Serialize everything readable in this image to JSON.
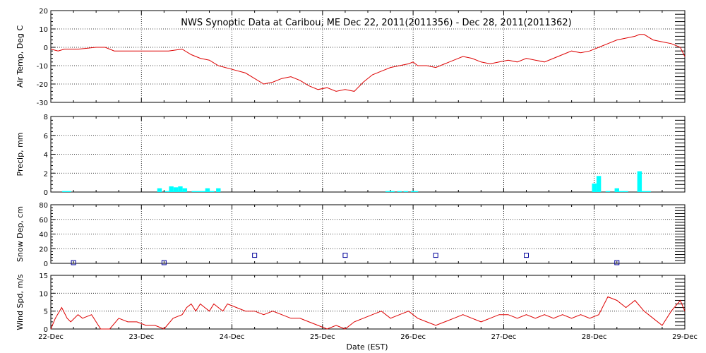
{
  "title": "NWS Synoptic Data at Caribou, ME    Dec 22, 2011(2011356) - Dec 28, 2011(2011362)",
  "xlabel": "Date (EST)",
  "x_ticks": [
    "22-Dec",
    "23-Dec",
    "24-Dec",
    "25-Dec",
    "26-Dec",
    "27-Dec",
    "28-Dec",
    "29-Dec"
  ],
  "colors": {
    "temp": "#dd0000",
    "precip": "#00ffff",
    "snow": "#000099",
    "wind": "#dd0000",
    "grid": "#000000"
  },
  "chart_data": [
    {
      "type": "line",
      "ylabel": "Air Temp, Deg C",
      "ylim": [
        -30,
        20
      ],
      "yticks": [
        -30,
        -20,
        -10,
        0,
        10,
        20
      ],
      "grid": true,
      "x_unit": "days since 22-Dec 00:00",
      "series": [
        {
          "x": [
            0,
            0.08,
            0.15,
            0.3,
            0.5,
            0.6,
            0.7,
            0.9,
            1.1,
            1.3,
            1.45,
            1.55,
            1.65,
            1.75,
            1.85,
            2.0,
            2.15,
            2.25,
            2.35,
            2.45,
            2.55,
            2.65,
            2.75,
            2.85,
            2.95,
            3.05,
            3.15,
            3.25,
            3.35,
            3.45,
            3.55,
            3.65,
            3.75,
            3.85,
            3.95,
            4.0,
            4.05,
            4.15,
            4.25,
            4.35,
            4.45,
            4.55,
            4.65,
            4.75,
            4.85,
            4.95,
            5.05,
            5.15,
            5.25,
            5.35,
            5.45,
            5.55,
            5.65,
            5.75,
            5.85,
            5.95,
            6.05,
            6.15,
            6.25,
            6.35,
            6.45,
            6.5,
            6.55,
            6.65,
            6.75,
            6.85,
            6.95,
            7.0
          ],
          "y": [
            -1,
            -2,
            -1,
            -1,
            0,
            0,
            -2,
            -2,
            -2,
            -2,
            -1,
            -4,
            -6,
            -7,
            -10,
            -12,
            -14,
            -17,
            -20,
            -19,
            -17,
            -16,
            -18,
            -21,
            -23,
            -22,
            -24,
            -23,
            -24,
            -19,
            -15,
            -13,
            -11,
            -10,
            -9,
            -8,
            -10,
            -10,
            -11,
            -9,
            -7,
            -5,
            -6,
            -8,
            -9,
            -8,
            -7,
            -8,
            -6,
            -7,
            -8,
            -6,
            -4,
            -2,
            -3,
            -2,
            0,
            2,
            4,
            5,
            6,
            7,
            7,
            4,
            3,
            2,
            0,
            -5
          ]
        }
      ]
    },
    {
      "type": "bar",
      "ylabel": "Precip, mm",
      "ylim": [
        0,
        8
      ],
      "yticks": [
        0,
        2,
        4,
        6,
        8
      ],
      "grid": true,
      "x_unit": "days since 22-Dec 00:00",
      "series": [
        {
          "x": [
            0.15,
            0.2,
            1.2,
            1.28,
            1.33,
            1.38,
            1.43,
            1.48,
            1.58,
            1.63,
            1.68,
            1.73,
            1.78,
            1.85,
            3.72,
            3.77,
            3.85,
            3.92,
            4.0,
            4.03,
            6.0,
            6.05,
            6.15,
            6.25,
            6.3,
            6.35,
            6.5,
            6.55,
            6.6
          ],
          "values": [
            0.1,
            0.1,
            0.4,
            0.1,
            0.6,
            0.5,
            0.6,
            0.4,
            0.1,
            0.1,
            0.1,
            0.4,
            0.1,
            0.4,
            0.1,
            0.1,
            0.1,
            0.1,
            0.1,
            0.1,
            0.9,
            1.7,
            0.1,
            0.4,
            0.1,
            0.1,
            2.2,
            0.1,
            0.1
          ],
          "bar_width_days": 0.05
        }
      ]
    },
    {
      "type": "scatter",
      "ylabel": "Snow Dep, cm",
      "ylim": [
        0,
        80
      ],
      "yticks": [
        0,
        20,
        40,
        60,
        80
      ],
      "grid": true,
      "x_unit": "days since 22-Dec 00:00",
      "series": [
        {
          "x": [
            0.25,
            1.25,
            2.25,
            3.25,
            4.25,
            5.25,
            6.25
          ],
          "y": [
            1,
            1,
            11,
            11,
            11,
            11,
            1
          ]
        }
      ]
    },
    {
      "type": "line",
      "ylabel": "Wind Spd, m/s",
      "ylim": [
        0,
        15
      ],
      "yticks": [
        0,
        5,
        10,
        15
      ],
      "grid": true,
      "x_unit": "days since 22-Dec 00:00",
      "series": [
        {
          "x": [
            0,
            0.05,
            0.12,
            0.18,
            0.22,
            0.3,
            0.35,
            0.45,
            0.55,
            0.65,
            0.75,
            0.85,
            0.95,
            1.05,
            1.15,
            1.25,
            1.35,
            1.45,
            1.5,
            1.55,
            1.6,
            1.65,
            1.7,
            1.75,
            1.8,
            1.85,
            1.9,
            1.95,
            2.05,
            2.15,
            2.25,
            2.35,
            2.45,
            2.55,
            2.65,
            2.75,
            2.85,
            2.95,
            3.05,
            3.15,
            3.25,
            3.35,
            3.45,
            3.55,
            3.65,
            3.75,
            3.85,
            3.95,
            4.05,
            4.15,
            4.25,
            4.35,
            4.45,
            4.55,
            4.65,
            4.75,
            4.85,
            4.95,
            5.05,
            5.15,
            5.25,
            5.35,
            5.45,
            5.55,
            5.65,
            5.75,
            5.85,
            5.95,
            6.05,
            6.15,
            6.25,
            6.35,
            6.45,
            6.55,
            6.65,
            6.75,
            6.85,
            6.95,
            7.0
          ],
          "y": [
            0,
            3,
            6,
            3,
            2,
            4,
            3,
            4,
            0,
            0,
            3,
            2,
            2,
            1,
            1,
            0,
            3,
            4,
            6,
            7,
            5,
            7,
            6,
            5,
            7,
            6,
            5,
            7,
            6,
            5,
            5,
            4,
            5,
            4,
            3,
            3,
            2,
            1,
            0,
            1,
            0,
            2,
            3,
            4,
            5,
            3,
            4,
            5,
            3,
            2,
            1,
            2,
            3,
            4,
            3,
            2,
            3,
            4,
            4,
            3,
            4,
            3,
            4,
            3,
            4,
            3,
            4,
            3,
            4,
            9,
            8,
            6,
            8,
            5,
            3,
            1,
            5,
            8,
            5
          ]
        }
      ]
    }
  ]
}
